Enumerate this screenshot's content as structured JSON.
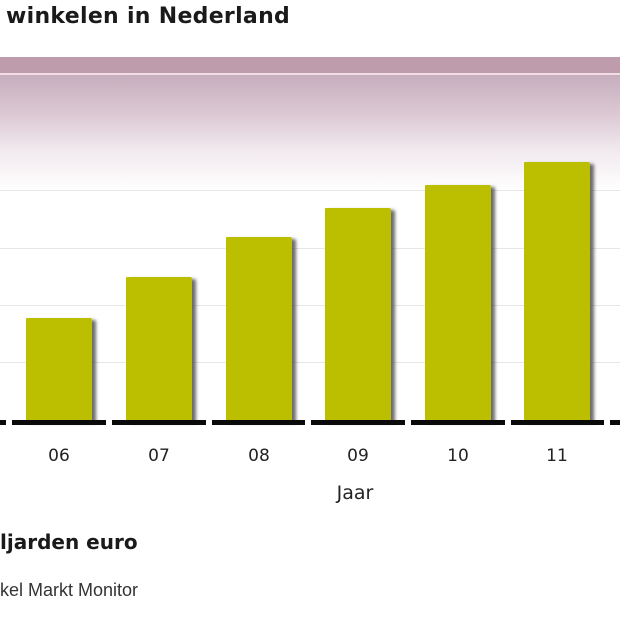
{
  "header": {
    "title_visible": "winkelen in Nederland"
  },
  "footer": {
    "unit_visible": "ljarden euro",
    "source_visible": "kel Markt Monitor"
  },
  "colors": {
    "bar": "#bcbf00",
    "band_top": "#bf9cac",
    "axis": "#0a0a0a",
    "gridline": "#e6e6e6"
  },
  "chart_data": {
    "type": "bar",
    "title": "…winkelen in Nederland",
    "xlabel": "Jaar",
    "ylabel": "",
    "unit_note": "…ljarden euro (likely 'Miljarden euro')",
    "source_note": "…kel Markt Monitor",
    "categories": [
      "06",
      "07",
      "08",
      "09",
      "10",
      "11"
    ],
    "values": [
      1.8,
      2.5,
      3.2,
      3.7,
      4.1,
      4.5
    ],
    "value_note": "Estimated from gridlines (y-axis tick labels cropped out of view); gridline step assumed 1 unit",
    "ylim": [
      0,
      6
    ],
    "grid": true,
    "legend": "none"
  }
}
